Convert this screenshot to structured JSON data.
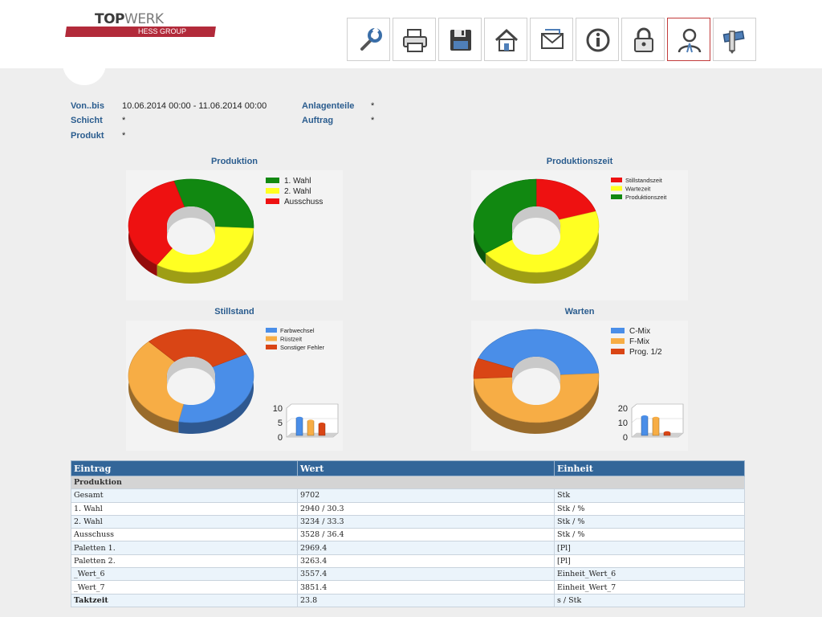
{
  "logo": {
    "brand_bold": "TOP",
    "brand_light": "WERK",
    "subtitle": "HESS GROUP"
  },
  "toolbar": [
    {
      "name": "wrench",
      "label": "Einstellungen"
    },
    {
      "name": "printer",
      "label": "Drucken"
    },
    {
      "name": "floppy-disk",
      "label": "Speichern"
    },
    {
      "name": "home",
      "label": "Startseite"
    },
    {
      "name": "envelope",
      "label": "Nachricht"
    },
    {
      "name": "info",
      "label": "Information"
    },
    {
      "name": "lock",
      "label": "Sperren"
    },
    {
      "name": "user",
      "label": "Benutzer",
      "active": true
    },
    {
      "name": "ruler-pencil",
      "label": "Werkzeuge"
    }
  ],
  "filters": {
    "von_bis_label": "Von..bis",
    "von_bis_value": "10.06.2014 00:00  -  11.06.2014 00:00",
    "schicht_label": "Schicht",
    "schicht_value": "*",
    "produkt_label": "Produkt",
    "produkt_value": "*",
    "anlagenteile_label": "Anlagenteile",
    "anlagenteile_value": "*",
    "auftrag_label": "Auftrag",
    "auftrag_value": "*"
  },
  "colors": {
    "header_blue": "#336699",
    "label_blue": "#2a5c8e",
    "green": "#118811",
    "yellow": "#ffff22",
    "red": "#ee1111",
    "blue": "#4a8ee8",
    "orange": "#f7ad45",
    "darkred": "#d94515"
  },
  "chart_data": [
    {
      "type": "pie",
      "title": "Produktion",
      "labels": [
        "1. Wahl",
        "2. Wahl",
        "Ausschuss"
      ],
      "values": [
        30.3,
        33.3,
        36.4
      ],
      "colors": [
        "#118811",
        "#ffff22",
        "#ee1111"
      ],
      "legend": "top-right"
    },
    {
      "type": "pie",
      "title": "Produktionszeit",
      "labels": [
        "Stillstandszeit",
        "Wartezeit",
        "Produktionszeit"
      ],
      "values": [
        20,
        45,
        35
      ],
      "colors": [
        "#ee1111",
        "#ffff22",
        "#118811"
      ],
      "legend": "top-right"
    },
    {
      "type": "pie",
      "title": "Stillstand",
      "labels": [
        "Farbwechsel",
        "Rüstzeit",
        "Sonstiger Fehler"
      ],
      "values": [
        36,
        35,
        29
      ],
      "colors": [
        "#4a8ee8",
        "#f7ad45",
        "#d94515"
      ],
      "legend": "top-right",
      "inset_bar": {
        "ylim": [
          0,
          10
        ],
        "ticks": [
          "10",
          "5",
          "0"
        ],
        "values": [
          6,
          5,
          4
        ]
      }
    },
    {
      "type": "pie",
      "title": "Warten",
      "labels": [
        "C-Mix",
        "F-Mix",
        "Prog. 1/2"
      ],
      "values": [
        43,
        50,
        7
      ],
      "colors": [
        "#4a8ee8",
        "#f7ad45",
        "#d94515"
      ],
      "legend": "top-right",
      "inset_bar": {
        "ylim": [
          0,
          20
        ],
        "ticks": [
          "20",
          "10",
          "0"
        ],
        "values": [
          13,
          12,
          2
        ]
      }
    }
  ],
  "table": {
    "headers": [
      "Eintrag",
      "Wert",
      "Einheit"
    ],
    "section": "Produktion",
    "rows": [
      {
        "eintrag": "Gesamt",
        "wert": "9702",
        "einheit": "Stk",
        "bold": false
      },
      {
        "eintrag": "1. Wahl",
        "wert": "2940 / 30.3",
        "einheit": "Stk / %",
        "bold": false
      },
      {
        "eintrag": "2. Wahl",
        "wert": "3234 / 33.3",
        "einheit": "Stk / %",
        "bold": false
      },
      {
        "eintrag": "Ausschuss",
        "wert": "3528 / 36.4",
        "einheit": "Stk / %",
        "bold": false
      },
      {
        "eintrag": "Paletten 1.",
        "wert": "2969.4",
        "einheit": "[Pl]",
        "bold": false
      },
      {
        "eintrag": "Paletten 2.",
        "wert": "3263.4",
        "einheit": "[Pl]",
        "bold": false
      },
      {
        "eintrag": "_Wert_6",
        "wert": "3557.4",
        "einheit": "Einheit_Wert_6",
        "bold": false
      },
      {
        "eintrag": "_Wert_7",
        "wert": "3851.4",
        "einheit": "Einheit_Wert_7",
        "bold": false
      },
      {
        "eintrag": "Taktzeit",
        "wert": "23.8",
        "einheit": "s / Stk",
        "bold": true
      }
    ]
  }
}
